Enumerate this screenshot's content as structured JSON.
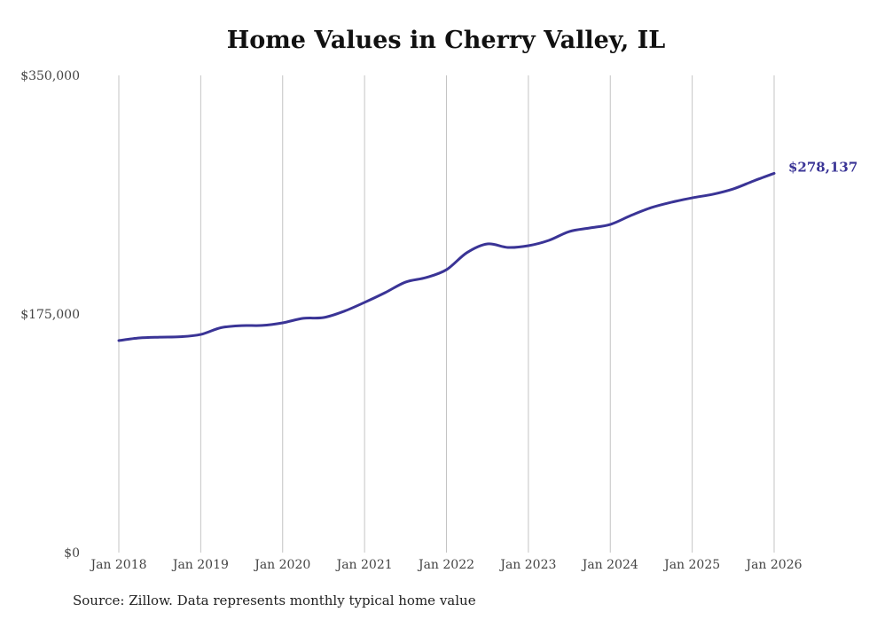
{
  "chart_data": {
    "type": "line",
    "title": "Home Values in Cherry Valley, IL",
    "source": "Source: Zillow. Data represents monthly typical home value",
    "xlabel": "",
    "ylabel": "",
    "ylim": [
      0,
      350000
    ],
    "xlim": [
      2018,
      2026
    ],
    "y_ticks": [
      {
        "value": 0,
        "label": "$0"
      },
      {
        "value": 175000,
        "label": "$175,000"
      },
      {
        "value": 350000,
        "label": "$350,000"
      }
    ],
    "x_ticks": [
      {
        "value": 2018,
        "label": "Jan 2018"
      },
      {
        "value": 2019,
        "label": "Jan 2019"
      },
      {
        "value": 2020,
        "label": "Jan 2020"
      },
      {
        "value": 2021,
        "label": "Jan 2021"
      },
      {
        "value": 2022,
        "label": "Jan 2022"
      },
      {
        "value": 2023,
        "label": "Jan 2023"
      },
      {
        "value": 2024,
        "label": "Jan 2024"
      },
      {
        "value": 2025,
        "label": "Jan 2025"
      },
      {
        "value": 2026,
        "label": "Jan 2026"
      }
    ],
    "grid": "vertical",
    "series": [
      {
        "name": "Typical home value",
        "color": "#3a3496",
        "end_label": "$278,137",
        "x": [
          2018,
          2018.25,
          2018.5,
          2018.75,
          2019,
          2019.25,
          2019.5,
          2019.75,
          2020,
          2020.25,
          2020.5,
          2020.75,
          2021,
          2021.25,
          2021.5,
          2021.75,
          2022,
          2022.25,
          2022.5,
          2022.75,
          2023,
          2023.25,
          2023.5,
          2023.75,
          2024,
          2024.25,
          2024.5,
          2024.75,
          2025,
          2025.25,
          2025.5,
          2025.75,
          2026
        ],
        "values": [
          155500,
          157400,
          158000,
          158300,
          160000,
          165000,
          166500,
          166600,
          168500,
          171800,
          172400,
          177000,
          183500,
          190600,
          198400,
          201700,
          207500,
          220000,
          226400,
          223800,
          225100,
          229000,
          235500,
          238100,
          240700,
          247200,
          253000,
          257000,
          260200,
          262800,
          266700,
          272600,
          278137
        ]
      }
    ]
  }
}
